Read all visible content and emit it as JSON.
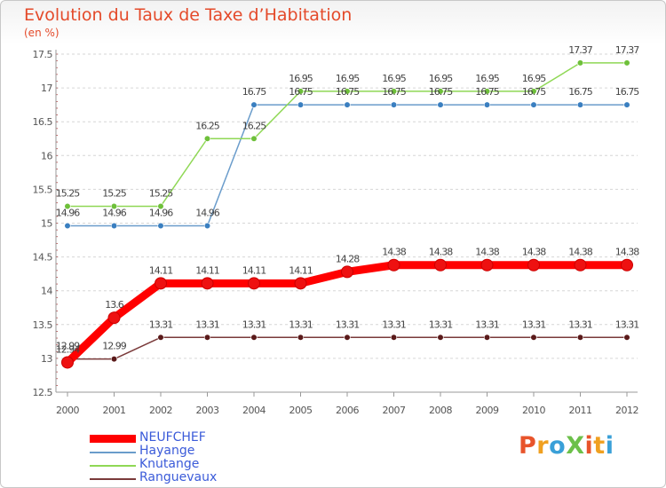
{
  "title": "Evolution du Taux de Taxe d’Habitation",
  "subtitle": "(en %)",
  "logo_text": "ProXiti",
  "chart_data": {
    "type": "line",
    "title": "Evolution du Taux de Taxe d’Habitation",
    "ylabel": "(en %)",
    "xlabel": "",
    "x": [
      "2000",
      "2001",
      "2002",
      "2003",
      "2004",
      "2005",
      "2006",
      "2007",
      "2008",
      "2009",
      "2010",
      "2011",
      "2012"
    ],
    "ylim": [
      12.5,
      17.5
    ],
    "yticks": [
      "12.5",
      "13",
      "13.5",
      "14",
      "14.5",
      "15",
      "15.5",
      "16",
      "16.5",
      "17",
      "17.5"
    ],
    "grid": "horizontal dashed",
    "legend": "bottom-left",
    "series": [
      {
        "name": "NEUFCHEF",
        "color": "#ff0000",
        "values": [
          12.94,
          13.6,
          14.11,
          14.11,
          14.11,
          14.11,
          14.28,
          14.38,
          14.38,
          14.38,
          14.38,
          14.38,
          14.38
        ],
        "labels": [
          "12.94",
          "13.6",
          "14.11",
          "14.11",
          "14.11",
          "14.11",
          "14.28",
          "14.38",
          "14.38",
          "14.38",
          "14.38",
          "14.38",
          "14.38"
        ]
      },
      {
        "name": "Hayange",
        "color": "#6a9ccb",
        "values": [
          14.96,
          14.96,
          14.96,
          14.96,
          16.75,
          16.75,
          16.75,
          16.75,
          16.75,
          16.75,
          16.75,
          16.75,
          16.75
        ],
        "labels": [
          "14.96",
          "14.96",
          "14.96",
          "14.96",
          "16.75",
          "16.75",
          "16.75",
          "16.75",
          "16.75",
          "16.75",
          "16.75",
          "16.75",
          "16.75"
        ]
      },
      {
        "name": "Knutange",
        "color": "#8fd855",
        "values": [
          15.25,
          15.25,
          15.25,
          16.25,
          16.25,
          16.95,
          16.95,
          16.95,
          16.95,
          16.95,
          16.95,
          17.37,
          17.37
        ],
        "labels": [
          "15.25",
          "15.25",
          "15.25",
          "16.25",
          "16.25",
          "16.95",
          "16.95",
          "16.95",
          "16.95",
          "16.95",
          "16.95",
          "17.37",
          "17.37"
        ]
      },
      {
        "name": "Ranguevaux",
        "color": "#7a3a3a",
        "values": [
          12.99,
          12.99,
          13.31,
          13.31,
          13.31,
          13.31,
          13.31,
          13.31,
          13.31,
          13.31,
          13.31,
          13.31,
          13.31
        ],
        "labels": [
          "12.99",
          "12.99",
          "13.31",
          "13.31",
          "13.31",
          "13.31",
          "13.31",
          "13.31",
          "13.31",
          "13.31",
          "13.31",
          "13.31",
          "13.31"
        ]
      }
    ]
  }
}
